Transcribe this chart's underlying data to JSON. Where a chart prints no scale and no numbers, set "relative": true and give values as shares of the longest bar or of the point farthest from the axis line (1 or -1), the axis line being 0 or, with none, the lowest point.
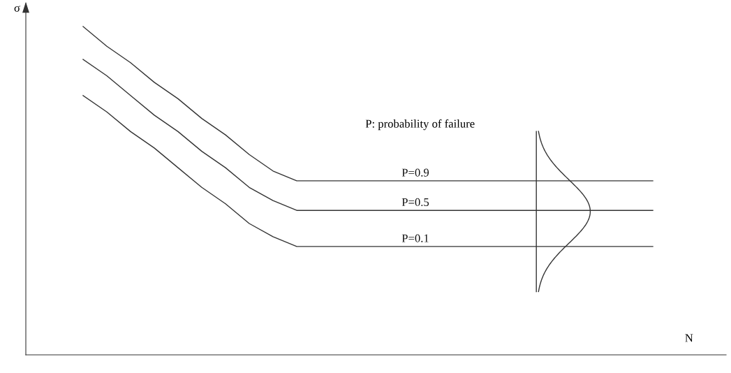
{
  "chart_data": {
    "type": "line",
    "relative": true,
    "xlabel": "N",
    "ylabel": "σ",
    "categories": [
      null,
      null,
      null,
      null,
      null,
      null,
      null,
      null,
      null,
      null,
      null,
      null,
      null,
      null,
      null,
      null,
      null,
      null,
      null,
      null,
      null,
      null,
      null,
      null,
      null
    ],
    "series": [
      {
        "name": "P=0.9",
        "color": "#333333",
        "values": [
          1,
          0.94,
          0.89,
          0.83,
          0.78,
          0.72,
          0.67,
          0.61,
          0.56,
          0.53,
          0.53,
          0.53,
          0.53,
          0.53,
          0.53,
          0.53,
          0.53,
          0.53,
          0.53,
          0.53,
          0.53,
          0.53,
          0.53,
          0.53,
          0.53
        ]
      },
      {
        "name": "P=0.5",
        "color": "#333333",
        "values": [
          0.9,
          0.85,
          0.79,
          0.73,
          0.68,
          0.62,
          0.57,
          0.51,
          0.47,
          0.44,
          0.44,
          0.44,
          0.44,
          0.44,
          0.44,
          0.44,
          0.44,
          0.44,
          0.44,
          0.44,
          0.44,
          0.44,
          0.44,
          0.44,
          0.44
        ]
      },
      {
        "name": "P=0.1",
        "color": "#333333",
        "values": [
          0.79,
          0.74,
          0.68,
          0.63,
          0.57,
          0.51,
          0.46,
          0.4,
          0.36,
          0.33,
          0.33,
          0.33,
          0.33,
          0.33,
          0.33,
          0.33,
          0.33,
          0.33,
          0.33,
          0.33,
          0.33,
          0.33,
          0.33,
          0.33,
          0.33
        ]
      }
    ],
    "annotations": [
      "P: probability of failure"
    ],
    "legend": false,
    "marker": "none",
    "line_style": "solid"
  }
}
